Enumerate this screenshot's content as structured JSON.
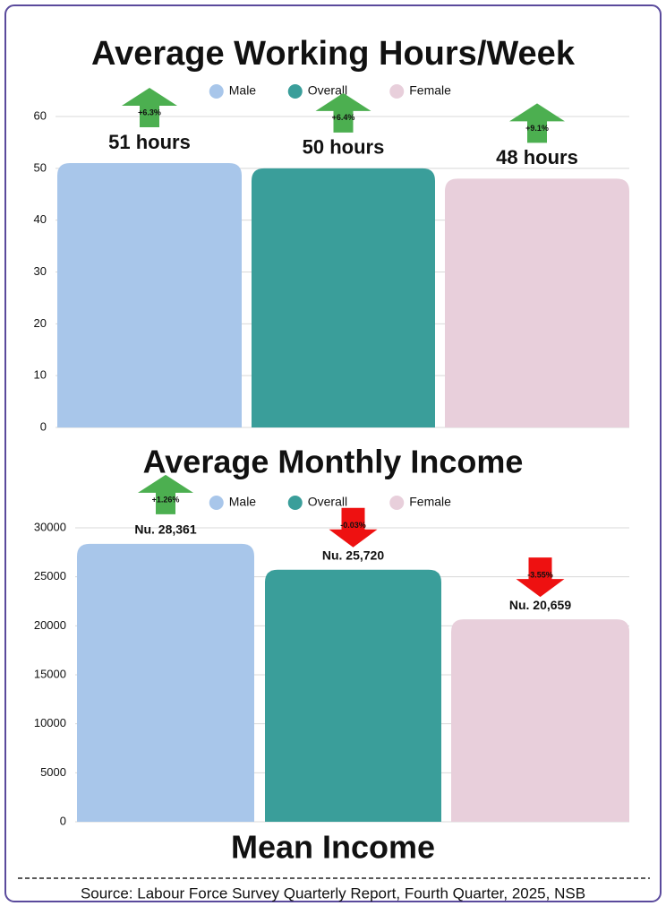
{
  "chart_data": [
    {
      "type": "bar",
      "title": "Average Working Hours/Week",
      "categories": [
        null
      ],
      "series": [
        {
          "name": "Male",
          "color": "#a8c6ea",
          "values": [
            51
          ],
          "value_labels": [
            "51 hours"
          ],
          "change": {
            "value": 6.3,
            "label": "+6.3%"
          }
        },
        {
          "name": "Overall",
          "color": "#3a9e9a",
          "values": [
            50
          ],
          "value_labels": [
            "50 hours"
          ],
          "change": {
            "value": 6.4,
            "label": "+6.4%"
          }
        },
        {
          "name": "Female",
          "color": "#e8cfdb",
          "values": [
            48
          ],
          "value_labels": [
            "48 hours"
          ],
          "change": {
            "value": 9.1,
            "label": "+9.1%"
          }
        }
      ],
      "ylim": [
        0,
        60
      ],
      "yticks": [
        0,
        10,
        20,
        30,
        40,
        50,
        60
      ],
      "grid": true
    },
    {
      "type": "bar",
      "title": "Average Monthly Income",
      "xlabel": "Mean Income",
      "categories": [
        null
      ],
      "series": [
        {
          "name": "Male",
          "color": "#a8c6ea",
          "values": [
            28361
          ],
          "value_labels": [
            "Nu. 28,361"
          ],
          "change": {
            "value": 1.26,
            "label": "+1.26%"
          }
        },
        {
          "name": "Overall",
          "color": "#3a9e9a",
          "values": [
            25720
          ],
          "value_labels": [
            "Nu. 25,720"
          ],
          "change": {
            "value": -0.03,
            "label": "-0.03%"
          }
        },
        {
          "name": "Female",
          "color": "#e8cfdb",
          "values": [
            20659
          ],
          "value_labels": [
            "Nu. 20,659"
          ],
          "change": {
            "value": -3.55,
            "label": "-3.55%"
          }
        }
      ],
      "ylim": [
        0,
        30000
      ],
      "yticks": [
        0,
        5000,
        10000,
        15000,
        20000,
        25000,
        30000
      ],
      "grid": true
    }
  ],
  "source": "Source: Labour Force Survey Quarterly Report, Fourth Quarter, 2025, NSB"
}
